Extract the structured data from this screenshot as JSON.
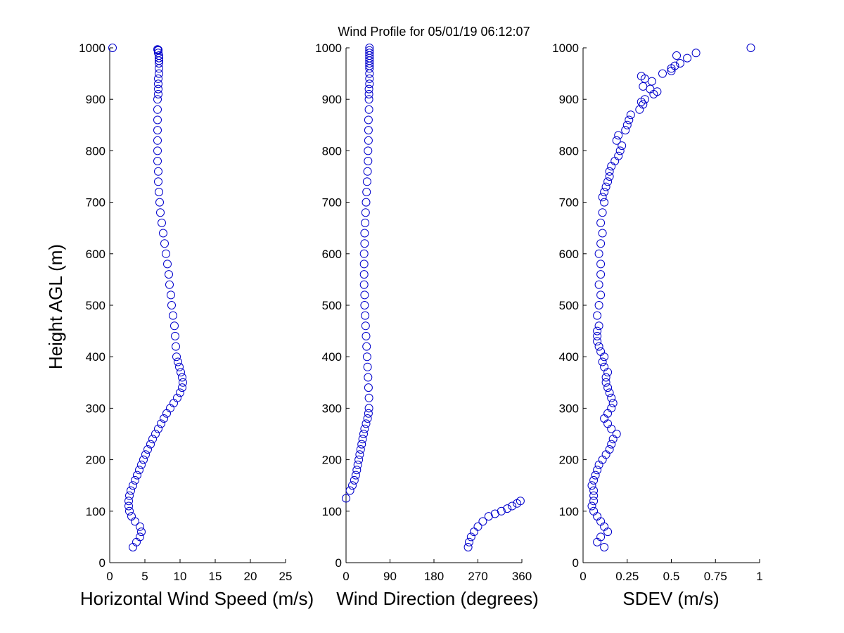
{
  "title": "Wind Profile for  05/01/19 06:12:07",
  "ylabel": "Height AGL (m)",
  "colors": {
    "marker": "#0000cc",
    "axis": "#000000",
    "background": "#ffffff"
  },
  "chart_data": [
    {
      "type": "scatter",
      "name": "speed",
      "xlabel": "Horizontal Wind Speed (m/s)",
      "xlim": [
        0,
        25
      ],
      "ylim": [
        0,
        1000
      ],
      "xticks": [
        0,
        5,
        10,
        15,
        20,
        25
      ],
      "xtick_labels": [
        "0",
        "5",
        "10",
        "15",
        "20",
        "25"
      ],
      "yticks": [
        0,
        100,
        200,
        300,
        400,
        500,
        600,
        700,
        800,
        900,
        1000
      ],
      "ytick_labels": [
        "0",
        "100",
        "200",
        "300",
        "400",
        "500",
        "600",
        "700",
        "800",
        "900",
        "1000"
      ],
      "x": [
        3.3,
        3.8,
        4.3,
        4.5,
        4.3,
        3.6,
        3.1,
        2.8,
        2.7,
        2.7,
        2.8,
        3.0,
        3.3,
        3.6,
        3.9,
        4.2,
        4.5,
        4.8,
        5.1,
        5.4,
        5.8,
        6.1,
        6.5,
        6.9,
        7.3,
        7.7,
        8.1,
        8.6,
        9.1,
        9.6,
        10.0,
        10.3,
        10.4,
        10.3,
        10.1,
        9.9,
        9.7,
        9.5,
        9.4,
        9.3,
        9.2,
        9.0,
        8.8,
        8.7,
        8.5,
        8.4,
        8.2,
        8.0,
        7.8,
        7.6,
        7.4,
        7.2,
        7.1,
        7.0,
        6.9,
        6.9,
        6.8,
        6.8,
        6.8,
        6.8,
        6.8,
        6.8,
        6.8,
        6.9,
        6.9,
        6.9,
        6.9,
        7.0,
        7.0,
        7.0,
        7.0,
        7.0,
        7.0,
        6.9,
        6.9,
        6.9,
        6.8,
        0.4
      ],
      "y": [
        30,
        40,
        50,
        60,
        70,
        80,
        90,
        100,
        110,
        120,
        130,
        140,
        150,
        160,
        170,
        180,
        190,
        200,
        210,
        220,
        230,
        240,
        250,
        260,
        270,
        280,
        290,
        300,
        310,
        320,
        330,
        340,
        350,
        360,
        370,
        380,
        390,
        400,
        420,
        440,
        460,
        480,
        500,
        520,
        540,
        560,
        580,
        600,
        620,
        640,
        660,
        680,
        700,
        720,
        740,
        760,
        780,
        800,
        820,
        840,
        860,
        880,
        900,
        910,
        920,
        930,
        940,
        950,
        960,
        970,
        975,
        980,
        985,
        990,
        995,
        996,
        997,
        1000
      ]
    },
    {
      "type": "scatter",
      "name": "direction",
      "xlabel": "Wind Direction (degrees)",
      "xlim": [
        0,
        360
      ],
      "ylim": [
        0,
        1000
      ],
      "xticks": [
        0,
        90,
        180,
        270,
        360
      ],
      "xtick_labels": [
        "0",
        "90",
        "180",
        "270",
        "360"
      ],
      "yticks": [
        0,
        100,
        200,
        300,
        400,
        500,
        600,
        700,
        800,
        900,
        1000
      ],
      "ytick_labels": [
        "0",
        "100",
        "200",
        "300",
        "400",
        "500",
        "600",
        "700",
        "800",
        "900",
        "1000"
      ],
      "x": [
        250,
        252,
        256,
        262,
        270,
        280,
        292,
        305,
        318,
        330,
        340,
        350,
        357,
        0,
        8,
        13,
        17,
        20,
        22,
        24,
        26,
        28,
        30,
        32,
        34,
        36,
        38,
        41,
        44,
        46,
        47,
        47,
        46,
        45,
        44,
        43,
        42,
        41,
        40,
        39,
        38,
        38,
        37,
        37,
        37,
        37,
        38,
        38,
        39,
        40,
        41,
        42,
        43,
        44,
        45,
        45,
        46,
        46,
        46,
        47,
        47,
        47,
        47,
        48,
        48,
        48,
        48,
        48,
        48,
        48,
        48,
        48,
        48,
        48,
        48
      ],
      "y": [
        30,
        40,
        50,
        60,
        70,
        80,
        90,
        95,
        100,
        105,
        110,
        115,
        120,
        125,
        140,
        150,
        160,
        170,
        180,
        190,
        200,
        210,
        220,
        230,
        240,
        250,
        260,
        270,
        280,
        290,
        300,
        320,
        340,
        360,
        380,
        400,
        420,
        440,
        460,
        480,
        500,
        520,
        540,
        560,
        580,
        600,
        620,
        640,
        660,
        680,
        700,
        720,
        740,
        760,
        780,
        800,
        820,
        840,
        860,
        880,
        900,
        910,
        920,
        930,
        940,
        950,
        960,
        965,
        970,
        975,
        980,
        985,
        990,
        995,
        1000
      ]
    },
    {
      "type": "scatter",
      "name": "sdev",
      "xlabel": "SDEV  (m/s)",
      "xlim": [
        0,
        1
      ],
      "ylim": [
        0,
        1000
      ],
      "xticks": [
        0,
        0.25,
        0.5,
        0.75,
        1
      ],
      "xtick_labels": [
        "0",
        "0.25",
        "0.5",
        "0.75",
        "1"
      ],
      "yticks": [
        0,
        100,
        200,
        300,
        400,
        500,
        600,
        700,
        800,
        900,
        1000
      ],
      "ytick_labels": [
        "0",
        "100",
        "200",
        "300",
        "400",
        "500",
        "600",
        "700",
        "800",
        "900",
        "1000"
      ],
      "x": [
        0.12,
        0.08,
        0.1,
        0.14,
        0.12,
        0.1,
        0.08,
        0.06,
        0.05,
        0.06,
        0.06,
        0.06,
        0.05,
        0.06,
        0.07,
        0.08,
        0.09,
        0.11,
        0.13,
        0.15,
        0.16,
        0.17,
        0.19,
        0.16,
        0.14,
        0.12,
        0.14,
        0.16,
        0.17,
        0.16,
        0.15,
        0.14,
        0.13,
        0.13,
        0.14,
        0.12,
        0.11,
        0.12,
        0.1,
        0.09,
        0.08,
        0.08,
        0.08,
        0.09,
        0.08,
        0.09,
        0.1,
        0.09,
        0.1,
        0.1,
        0.09,
        0.1,
        0.11,
        0.1,
        0.11,
        0.12,
        0.11,
        0.12,
        0.13,
        0.14,
        0.15,
        0.15,
        0.16,
        0.18,
        0.2,
        0.21,
        0.22,
        0.19,
        0.2,
        0.24,
        0.25,
        0.26,
        0.27,
        0.32,
        0.34,
        0.33,
        0.35,
        0.4,
        0.42,
        0.38,
        0.34,
        0.39,
        0.35,
        0.33,
        0.45,
        0.5,
        0.5,
        0.52,
        0.55,
        0.59,
        0.53,
        0.64,
        0.95
      ],
      "y": [
        30,
        40,
        50,
        60,
        70,
        80,
        90,
        100,
        110,
        120,
        130,
        140,
        150,
        160,
        170,
        180,
        190,
        200,
        210,
        220,
        230,
        240,
        250,
        260,
        270,
        280,
        290,
        300,
        310,
        320,
        330,
        340,
        350,
        360,
        370,
        380,
        390,
        400,
        410,
        420,
        430,
        440,
        450,
        460,
        480,
        500,
        520,
        540,
        560,
        580,
        600,
        620,
        640,
        660,
        680,
        700,
        710,
        720,
        730,
        740,
        750,
        760,
        770,
        780,
        790,
        800,
        810,
        820,
        830,
        840,
        850,
        860,
        870,
        880,
        890,
        895,
        900,
        910,
        915,
        920,
        925,
        935,
        940,
        945,
        950,
        955,
        960,
        965,
        970,
        980,
        985,
        990,
        1000
      ]
    }
  ]
}
